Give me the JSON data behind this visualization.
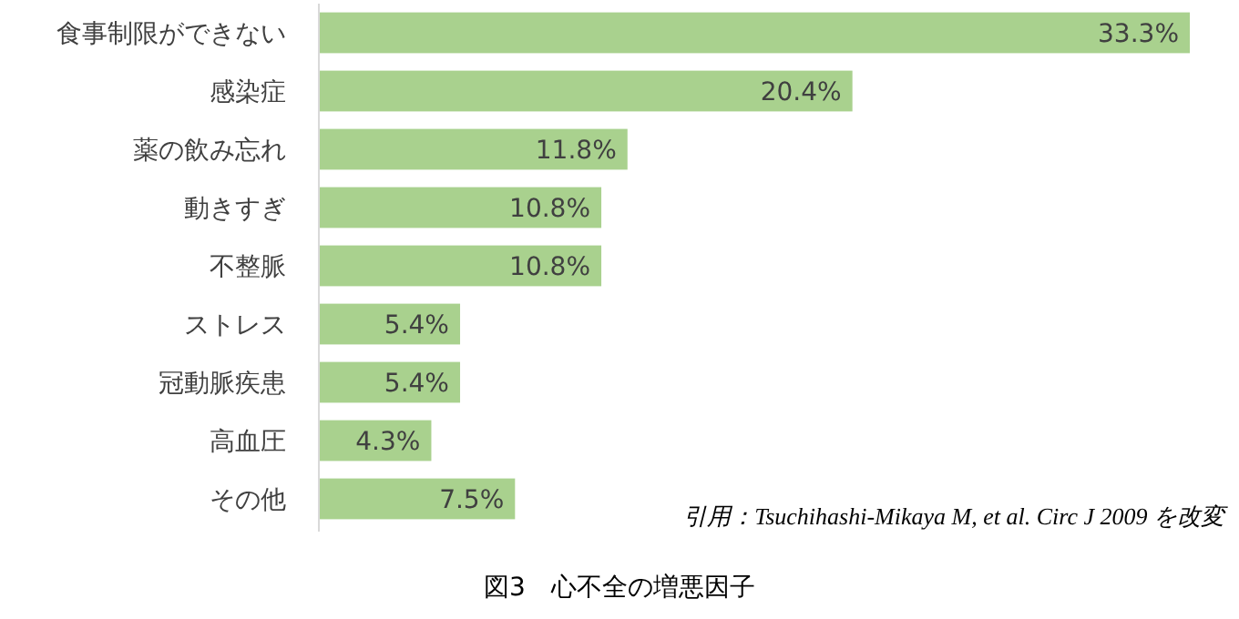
{
  "chart_data": {
    "type": "bar",
    "orientation": "horizontal",
    "title": "図3　心不全の増悪因子",
    "categories": [
      "食事制限ができない",
      "感染症",
      "薬の飲み忘れ",
      "動きすぎ",
      "不整脈",
      "ストレス",
      "冠動脈疾患",
      "高血圧",
      "その他"
    ],
    "values": [
      33.3,
      20.4,
      11.8,
      10.8,
      10.8,
      5.4,
      5.4,
      4.3,
      7.5
    ],
    "value_labels": [
      "33.3%",
      "20.4%",
      "11.8%",
      "10.8%",
      "10.8%",
      "5.4%",
      "5.4%",
      "4.3%",
      "7.5%"
    ],
    "color": "#a9d18e",
    "annotations": [
      "引用：Tsuchihashi-Mikaya M, et al. Circ J 2009 を改変"
    ]
  }
}
